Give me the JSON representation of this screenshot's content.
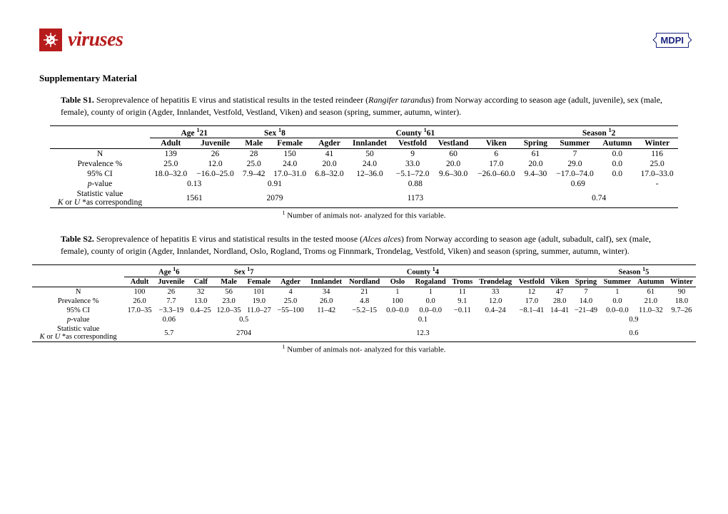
{
  "header": {
    "journal": "viruses",
    "publisher": "MDPI"
  },
  "section_title": "Supplementary Material",
  "table1": {
    "label": "Table S1.",
    "caption_a": " Seroprevalence of hepatitis E virus and statistical results in the tested reindeer (",
    "caption_b": "Rangifer tarandus",
    "caption_c": ") from Norway according to season age (adult, juvenile), sex (male, female), county of origin (Agder, Innlandet, Vestfold, Vestland, Viken) and season (spring, summer, autumn, winter).",
    "groups": [
      {
        "label": "Age ",
        "sup": "1",
        "tail": "21",
        "span": 2
      },
      {
        "label": "Sex ",
        "sup": "1",
        "tail": "8",
        "span": 2
      },
      {
        "label": "County ",
        "sup": "1",
        "tail": "61",
        "span": 5
      },
      {
        "label": "Season ",
        "sup": "1",
        "tail": "2",
        "span": 4
      }
    ],
    "subheaders": [
      "Adult",
      "Juvenile",
      "Male",
      "Female",
      "Agder",
      "Innlandet",
      "Vestfold",
      "Vestland",
      "Viken",
      "Spring",
      "Summer",
      "Autumn",
      "Winter"
    ],
    "rows": [
      {
        "label": "N",
        "cells": [
          "139",
          "26",
          "28",
          "150",
          "41",
          "50",
          "9",
          "60",
          "6",
          "61",
          "7",
          "0.0",
          "116"
        ]
      },
      {
        "label": "Prevalence %",
        "cells": [
          "25.0",
          "12.0",
          "25.0",
          "24.0",
          "20.0",
          "24.0",
          "33.0",
          "20.0",
          "17.0",
          "20.0",
          "29.0",
          "0.0",
          "25.0"
        ]
      },
      {
        "label": "95% CI",
        "cells": [
          "18.0–32.0",
          "−16.0–25.0",
          "7.9–42",
          "17.0–31.0",
          "6.8–32.0",
          "12–36.0",
          "−5.1–72.0",
          "9.6–30.0",
          "−26.0–60.0",
          "9.4–30",
          "−17.0–74.0",
          "0.0",
          "17.0–33.0"
        ]
      }
    ],
    "pvalue": {
      "label": "p-value",
      "vals": [
        "0.13",
        "0.91",
        "0.88",
        "0.69"
      ],
      "tail": "-"
    },
    "stat": {
      "label_a": "Statistic value",
      "label_b": "K or U *as corresponding",
      "vals": [
        "1561",
        "2079",
        "1173",
        "0.74"
      ]
    },
    "footnote_sup": "1",
    "footnote": " Number of animals not- analyzed for this variable."
  },
  "table2": {
    "label": "Table S2.",
    "caption_a": " Seroprevalence of hepatitis E virus and statistical results in the tested moose (",
    "caption_b": "Alces alces",
    "caption_c": ") from Norway according to season age (adult, subadult, calf), sex (male, female), county of origin (Agder, Innlandet, Nordland, Oslo, Rogland, Troms og Finnmark, Trondelag, Vestfold, Viken) and season (spring, summer, autumn, winter).",
    "groups": [
      {
        "label": "Age ",
        "sup": "1",
        "tail": "6",
        "span": 3
      },
      {
        "label": "Sex ",
        "sup": "1",
        "tail": "7",
        "span": 2
      },
      {
        "label": "County ",
        "sup": "1",
        "tail": "4",
        "span": 9
      },
      {
        "label": "Season ",
        "sup": "1",
        "tail": "5",
        "span": 4
      }
    ],
    "subheaders": [
      "Adult",
      "Juvenile",
      "Calf",
      "Male",
      "Female",
      "Agder",
      "Innlandet",
      "Nordland",
      "Oslo",
      "Rogaland",
      "Troms",
      "Trøndelag",
      "Vestfold",
      "Viken",
      "Spring",
      "Summer",
      "Autumn",
      "Winter"
    ],
    "rows": [
      {
        "label": "N",
        "cells": [
          "100",
          "26",
          "32",
          "56",
          "101",
          "4",
          "34",
          "21",
          "1",
          "1",
          "11",
          "33",
          "12",
          "47",
          "7",
          "1",
          "61",
          "90"
        ]
      },
      {
        "label": "Prevalence %",
        "cells": [
          "26.0",
          "7.7",
          "13.0",
          "23.0",
          "19.0",
          "25.0",
          "26.0",
          "4.8",
          "100",
          "0.0",
          "9.1",
          "12.0",
          "17.0",
          "28.0",
          "14.0",
          "0.0",
          "21.0",
          "18.0"
        ]
      },
      {
        "label": "95% CI",
        "cells": [
          "17.0–35",
          "−3.3–19",
          "0.4–25",
          "12.0–35",
          "11.0–27",
          "−55–100",
          "11–42",
          "−5.2–15",
          "0.0–0.0",
          "0.0–0.0",
          "−0.11",
          "0.4–24",
          "−8.1–41",
          "14–41",
          "−21–49",
          "0.0–0.0",
          "11.0–32",
          "9.7–26"
        ]
      }
    ],
    "pvalue": {
      "label": "p-value",
      "vals": [
        "0.06",
        "0.5",
        "0.1",
        "0.9"
      ]
    },
    "stat": {
      "label_a": "Statistic value",
      "label_b": "K or U *as corresponding",
      "vals": [
        "5.7",
        "2704",
        "12.3",
        "0.6"
      ]
    },
    "footnote_sup": "1",
    "footnote": " Number of animals not- analyzed for this variable."
  }
}
